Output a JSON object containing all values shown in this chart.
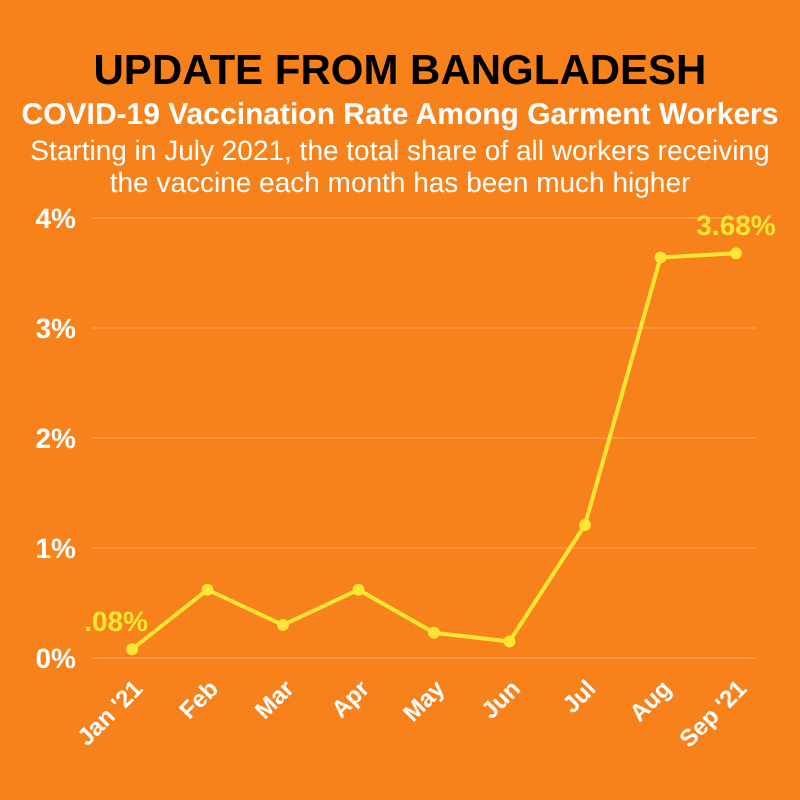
{
  "chart_data": {
    "type": "line",
    "title": "UPDATE FROM BANGLADESH",
    "subtitle": "COVID-19 Vaccination Rate Among Garment Workers",
    "annotations": [
      "Starting in July 2021, the total share of all workers receiving the vaccine each month has been much higher"
    ],
    "categories": [
      "Jan '21",
      "Feb",
      "Mar",
      "Apr",
      "May",
      "Jun",
      "Jul",
      "Aug",
      "Sep '21"
    ],
    "series": [
      {
        "color": "#ffe534",
        "values": [
          0.08,
          0.62,
          0.3,
          0.62,
          0.23,
          0.15,
          1.21,
          3.64,
          3.68
        ],
        "value_labels": [
          ".08%",
          null,
          null,
          null,
          null,
          null,
          null,
          null,
          "3.68%"
        ]
      }
    ],
    "ylim": [
      0,
      4
    ],
    "yticks": [
      {
        "value": 0,
        "label": "0%"
      },
      {
        "value": 1,
        "label": "1%"
      },
      {
        "value": 2,
        "label": "2%"
      },
      {
        "value": 3,
        "label": "3%"
      },
      {
        "value": 4,
        "label": "4%"
      }
    ],
    "grid": "y",
    "marker": "circle",
    "line_style": "solid",
    "legend": false
  }
}
